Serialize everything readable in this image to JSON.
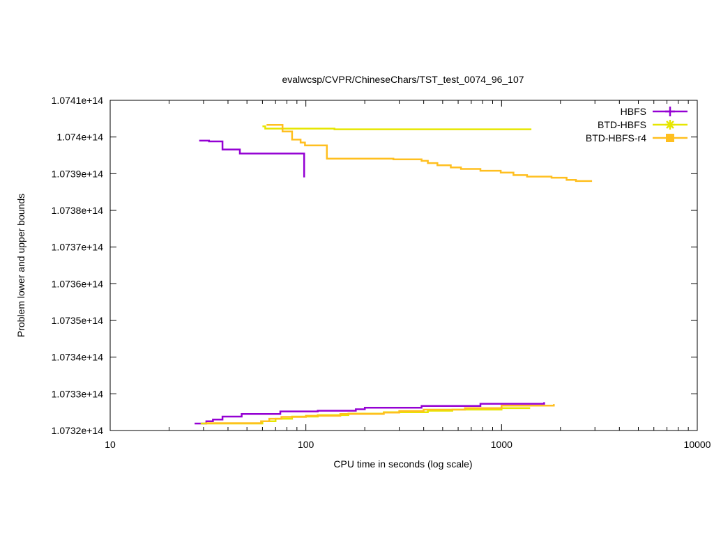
{
  "chart_data": {
    "type": "line",
    "title": "evalwcsp/CVPR/ChineseChars/TST_test_0074_96_107",
    "xlabel": "CPU time in seconds (log scale)",
    "ylabel": "Problem lower and upper bounds",
    "x_scale": "log",
    "xlim": [
      10,
      10000
    ],
    "ylim": [
      107320000000000.0,
      107410000000000.0
    ],
    "x_ticks": [
      10,
      100,
      1000,
      10000
    ],
    "x_tick_labels": [
      "10",
      "100",
      "1000",
      "10000"
    ],
    "y_ticks": [
      107320000000000.0,
      107330000000000.0,
      107340000000000.0,
      107350000000000.0,
      107360000000000.0,
      107370000000000.0,
      107380000000000.0,
      107390000000000.0,
      107400000000000.0,
      107410000000000.0
    ],
    "y_tick_labels": [
      "1.0732e+14",
      "1.0733e+14",
      "1.0734e+14",
      "1.0735e+14",
      "1.0736e+14",
      "1.0737e+14",
      "1.0738e+14",
      "1.0739e+14",
      "1.074e+14",
      "1.0741e+14"
    ],
    "grid": false,
    "legend_position": "top-right",
    "series": [
      {
        "name": "HBFS",
        "color": "#9400d3",
        "marker": "plus",
        "upper": [
          [
            28.5,
            107399000000000.0
          ],
          [
            32,
            107399000000000.0
          ],
          [
            32,
            107398800000000.0
          ],
          [
            37.5,
            107398800000000.0
          ],
          [
            37.5,
            107396600000000.0
          ],
          [
            46,
            107396600000000.0
          ],
          [
            46,
            107395500000000.0
          ],
          [
            98,
            107395500000000.0
          ],
          [
            98,
            107389000000000.0
          ]
        ],
        "lower": [
          [
            27,
            107321900000000.0
          ],
          [
            31,
            107321900000000.0
          ],
          [
            31,
            107322500000000.0
          ],
          [
            33.5,
            107322500000000.0
          ],
          [
            33.5,
            107323000000000.0
          ],
          [
            37.5,
            107323000000000.0
          ],
          [
            37.5,
            107323800000000.0
          ],
          [
            47,
            107323800000000.0
          ],
          [
            47,
            107324500000000.0
          ],
          [
            74,
            107324500000000.0
          ],
          [
            74,
            107325200000000.0
          ],
          [
            115,
            107325200000000.0
          ],
          [
            115,
            107325400000000.0
          ],
          [
            180,
            107325400000000.0
          ],
          [
            180,
            107325800000000.0
          ],
          [
            200,
            107325800000000.0
          ],
          [
            200,
            107326200000000.0
          ],
          [
            390,
            107326200000000.0
          ],
          [
            390,
            107326700000000.0
          ],
          [
            780,
            107326700000000.0
          ],
          [
            780,
            107327300000000.0
          ],
          [
            1650,
            107327300000000.0
          ],
          [
            1650,
            107327700000000.0
          ]
        ]
      },
      {
        "name": "BTD-HBFS",
        "color": "#e6e600",
        "marker": "star",
        "upper": [
          [
            60,
            107402900000000.0
          ],
          [
            62,
            107402900000000.0
          ],
          [
            62,
            107402300000000.0
          ],
          [
            140,
            107402300000000.0
          ],
          [
            140,
            107402100000000.0
          ],
          [
            1420,
            107402100000000.0
          ]
        ],
        "lower": [
          [
            29,
            107321900000000.0
          ],
          [
            60,
            107321900000000.0
          ],
          [
            60,
            107322500000000.0
          ],
          [
            70,
            107322500000000.0
          ],
          [
            70,
            107323200000000.0
          ],
          [
            85,
            107323200000000.0
          ],
          [
            85,
            107323800000000.0
          ],
          [
            115,
            107323800000000.0
          ],
          [
            115,
            107324200000000.0
          ],
          [
            165,
            107324200000000.0
          ],
          [
            165,
            107324600000000.0
          ],
          [
            250,
            107324600000000.0
          ],
          [
            250,
            107325000000000.0
          ],
          [
            420,
            107325000000000.0
          ],
          [
            420,
            107325400000000.0
          ],
          [
            560,
            107325400000000.0
          ],
          [
            560,
            107325700000000.0
          ],
          [
            1000,
            107325700000000.0
          ],
          [
            1000,
            107326100000000.0
          ],
          [
            1400,
            107326100000000.0
          ]
        ]
      },
      {
        "name": "BTD-HBFS-r4",
        "color": "#ffbf1f",
        "marker": "square",
        "upper": [
          [
            63,
            107403300000000.0
          ],
          [
            76,
            107403300000000.0
          ],
          [
            76,
            107401500000000.0
          ],
          [
            85,
            107401500000000.0
          ],
          [
            85,
            107399300000000.0
          ],
          [
            94,
            107399300000000.0
          ],
          [
            94,
            107398500000000.0
          ],
          [
            99,
            107398500000000.0
          ],
          [
            99,
            107397700000000.0
          ],
          [
            128,
            107397700000000.0
          ],
          [
            128,
            107394100000000.0
          ],
          [
            280,
            107394100000000.0
          ],
          [
            280,
            107393900000000.0
          ],
          [
            390,
            107393900000000.0
          ],
          [
            390,
            107393500000000.0
          ],
          [
            420,
            107393500000000.0
          ],
          [
            420,
            107392900000000.0
          ],
          [
            470,
            107392900000000.0
          ],
          [
            470,
            107392300000000.0
          ],
          [
            550,
            107392300000000.0
          ],
          [
            550,
            107391700000000.0
          ],
          [
            620,
            107391700000000.0
          ],
          [
            620,
            107391300000000.0
          ],
          [
            780,
            107391300000000.0
          ],
          [
            780,
            107390800000000.0
          ],
          [
            990,
            107390800000000.0
          ],
          [
            990,
            107390300000000.0
          ],
          [
            1150,
            107390300000000.0
          ],
          [
            1150,
            107389600000000.0
          ],
          [
            1350,
            107389600000000.0
          ],
          [
            1350,
            107389200000000.0
          ],
          [
            1800,
            107389200000000.0
          ],
          [
            1800,
            107388900000000.0
          ],
          [
            2150,
            107388900000000.0
          ],
          [
            2150,
            107388300000000.0
          ],
          [
            2400,
            107388300000000.0
          ],
          [
            2400,
            107388000000000.0
          ],
          [
            2900,
            107388000000000.0
          ]
        ],
        "lower": [
          [
            30.5,
            107322000000000.0
          ],
          [
            59,
            107322000000000.0
          ],
          [
            59,
            107322500000000.0
          ],
          [
            65,
            107322500000000.0
          ],
          [
            65,
            107323200000000.0
          ],
          [
            75,
            107323200000000.0
          ],
          [
            75,
            107323700000000.0
          ],
          [
            100,
            107323700000000.0
          ],
          [
            100,
            107324000000000.0
          ],
          [
            150,
            107324000000000.0
          ],
          [
            150,
            107324500000000.0
          ],
          [
            250,
            107324500000000.0
          ],
          [
            250,
            107324900000000.0
          ],
          [
            300,
            107324900000000.0
          ],
          [
            300,
            107325300000000.0
          ],
          [
            400,
            107325300000000.0
          ],
          [
            400,
            107325700000000.0
          ],
          [
            650,
            107325700000000.0
          ],
          [
            650,
            107326100000000.0
          ],
          [
            1000,
            107326100000000.0
          ],
          [
            1000,
            107326800000000.0
          ],
          [
            1850,
            107326800000000.0
          ],
          [
            1850,
            107327200000000.0
          ]
        ]
      }
    ]
  }
}
